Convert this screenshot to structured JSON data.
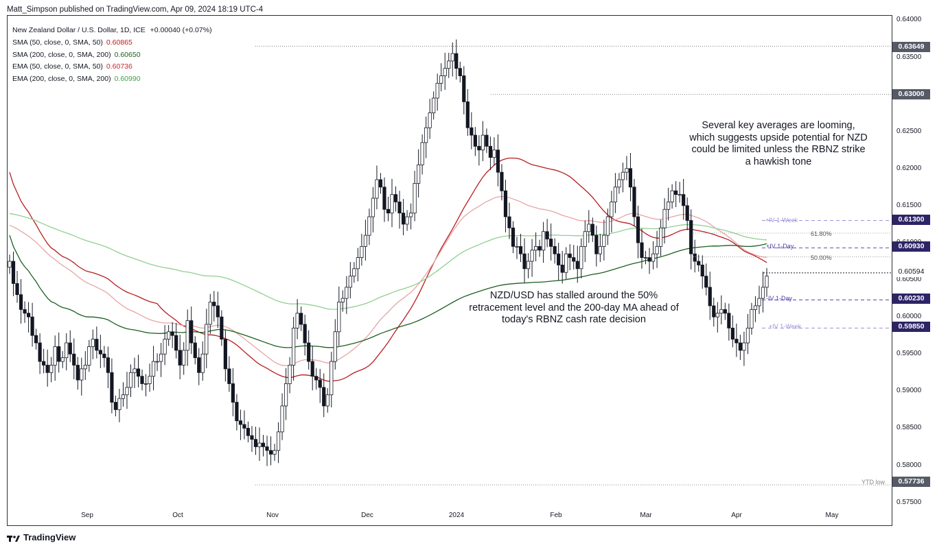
{
  "header": {
    "publisher_line": "Matt_Simpson published on TradingView.com, Apr 09, 2024 18:19 UTC-4"
  },
  "legend": {
    "title": "New Zealand Dollar / U.S. Dollar, 1D, ICE",
    "change": "+0.00040 (+0.07%)",
    "indicators": [
      {
        "label": "SMA (50, close, 0, SMA, 50)",
        "value": "0.60865",
        "color": "#b71c1c"
      },
      {
        "label": "SMA (200, close, 0, SMA, 200)",
        "value": "0.60650",
        "color": "#1b5e20"
      },
      {
        "label": "EMA (50, close, 0, SMA, 50)",
        "value": "0.60736",
        "color": "#c62828"
      },
      {
        "label": "EMA (200, close, 0, SMA, 200)",
        "value": "0.60990",
        "color": "#43a047"
      }
    ]
  },
  "annotations": {
    "averages": "Several key averages are looming, which suggests upside potential for NZD could be limited unless the RBNZ strike a hawkish tone",
    "stall": "NZD/USD has stalled around the 50% retracement level and the 200-day MA ahead of today's RBNZ cash rate decision"
  },
  "levels": {
    "iv_week_up": "+IV 1-Week",
    "iv_day_up": "+IV 1-Day",
    "iv_day_down": "-IV 1-Day",
    "iv_week_down": "+IV 1-Week",
    "fib_618": "61.80%",
    "fib_50": "50.00%",
    "ytd_low": "YTD low"
  },
  "price_badges": {
    "high": "0.63649",
    "round": "0.63000",
    "iv_week_up": "0.61300",
    "iv_day_up": "0.60930",
    "current": "0.60594",
    "iv_day_down": "0.60230",
    "iv_week_down": "0.59850",
    "ytd_low": "0.57736"
  },
  "brand": "TradingView",
  "chart_data": {
    "type": "candlestick",
    "symbol": "NZD/USD",
    "title": "New Zealand Dollar / U.S. Dollar, 1D, ICE",
    "ylim": [
      0.5745,
      0.6405
    ],
    "y_ticks": [
      "0.64000",
      "0.63500",
      "0.63000",
      "0.62500",
      "0.62000",
      "0.61500",
      "0.61000",
      "0.60500",
      "0.60000",
      "0.59500",
      "0.59000",
      "0.58500",
      "0.58000",
      "0.57500"
    ],
    "x_ticks": [
      "Sep",
      "Oct",
      "Nov",
      "Dec",
      "2024",
      "Feb",
      "Mar",
      "Apr",
      "May"
    ],
    "closes": [
      0.6075,
      0.6045,
      0.603,
      0.601,
      0.6005,
      0.6,
      0.5975,
      0.5965,
      0.594,
      0.5935,
      0.5925,
      0.5935,
      0.596,
      0.594,
      0.5945,
      0.5965,
      0.595,
      0.5935,
      0.5915,
      0.593,
      0.5935,
      0.596,
      0.597,
      0.5955,
      0.595,
      0.5945,
      0.5925,
      0.5885,
      0.5875,
      0.589,
      0.5895,
      0.5905,
      0.5925,
      0.593,
      0.592,
      0.591,
      0.591,
      0.592,
      0.594,
      0.594,
      0.595,
      0.597,
      0.598,
      0.5975,
      0.5955,
      0.5935,
      0.5955,
      0.5995,
      0.5965,
      0.5945,
      0.5925,
      0.595,
      0.599,
      0.602,
      0.6015,
      0.6,
      0.597,
      0.593,
      0.591,
      0.5885,
      0.586,
      0.5855,
      0.585,
      0.584,
      0.5835,
      0.5825,
      0.583,
      0.5825,
      0.582,
      0.5815,
      0.582,
      0.5845,
      0.588,
      0.591,
      0.5935,
      0.5985,
      0.6005,
      0.599,
      0.5965,
      0.594,
      0.592,
      0.5915,
      0.5905,
      0.588,
      0.5895,
      0.594,
      0.598,
      0.602,
      0.6025,
      0.604,
      0.6055,
      0.6065,
      0.608,
      0.6095,
      0.611,
      0.6135,
      0.616,
      0.6185,
      0.6175,
      0.6145,
      0.614,
      0.6165,
      0.6155,
      0.614,
      0.6125,
      0.6135,
      0.614,
      0.618,
      0.6205,
      0.6235,
      0.6255,
      0.6275,
      0.6295,
      0.6315,
      0.6325,
      0.6335,
      0.6345,
      0.6355,
      0.6335,
      0.6325,
      0.629,
      0.6255,
      0.6245,
      0.623,
      0.6225,
      0.6245,
      0.623,
      0.6215,
      0.6225,
      0.6195,
      0.617,
      0.6135,
      0.612,
      0.6095,
      0.6095,
      0.6085,
      0.6065,
      0.6075,
      0.609,
      0.6095,
      0.609,
      0.6115,
      0.6105,
      0.6095,
      0.6085,
      0.607,
      0.606,
      0.6085,
      0.608,
      0.6075,
      0.6065,
      0.6095,
      0.6115,
      0.6125,
      0.611,
      0.6085,
      0.6095,
      0.611,
      0.6135,
      0.6155,
      0.6175,
      0.6185,
      0.6195,
      0.62,
      0.6175,
      0.6135,
      0.61,
      0.608,
      0.608,
      0.6075,
      0.6085,
      0.6095,
      0.612,
      0.6145,
      0.6155,
      0.617,
      0.6165,
      0.6165,
      0.615,
      0.613,
      0.6085,
      0.6075,
      0.607,
      0.6055,
      0.604,
      0.6015,
      0.6,
      0.6005,
      0.601,
      0.6005,
      0.5985,
      0.597,
      0.5965,
      0.5955,
      0.5965,
      0.5985,
      0.601,
      0.6015,
      0.6025,
      0.604,
      0.6055
    ]
  }
}
